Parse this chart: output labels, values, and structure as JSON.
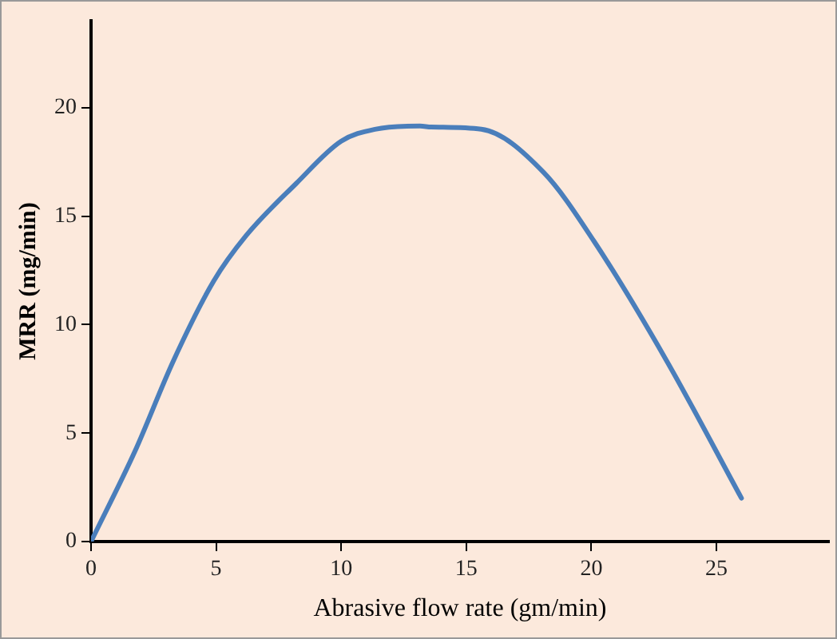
{
  "chart_data": {
    "type": "line",
    "xlabel": "Abrasive flow rate (gm/min)",
    "ylabel": "MRR (mg/min)",
    "x": [
      0,
      1.75,
      3.3,
      4.9,
      6.2,
      8.2,
      10.0,
      11.35,
      13.15,
      13.6,
      15.6,
      18.1,
      20.1,
      23.0,
      26.0
    ],
    "series": [
      {
        "color": "#4a7ebb",
        "values": [
          0,
          4.15,
          8.35,
          12.0,
          14.1,
          16.5,
          18.45,
          19.0,
          19.15,
          19.1,
          19.0,
          17.0,
          13.85,
          8.35,
          2.0
        ]
      }
    ],
    "xlim": [
      0,
      29.5
    ],
    "ylim": [
      0,
      24
    ],
    "xticks": [
      0,
      5,
      10,
      15,
      20,
      25
    ],
    "yticks": [
      0,
      5,
      10,
      15,
      20
    ],
    "grid": false,
    "legend": false,
    "marker": "none",
    "line_style": "solid"
  }
}
